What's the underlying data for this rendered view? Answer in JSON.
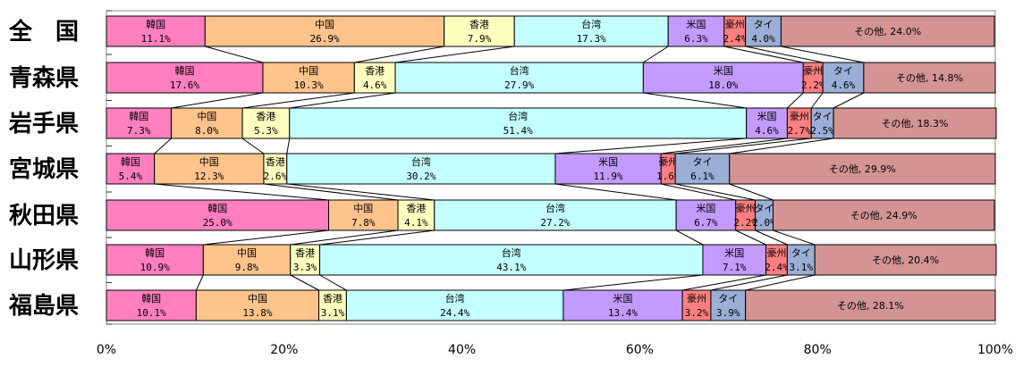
{
  "chart_data": {
    "type": "bar",
    "stacked": true,
    "orientation": "horizontal",
    "title": "",
    "xlabel": "",
    "ylabel": "",
    "xlim": [
      0,
      100
    ],
    "x_ticks": [
      "0%",
      "20%",
      "40%",
      "60%",
      "80%",
      "100%"
    ],
    "grid": false,
    "categories": [
      "全　国",
      "青森県",
      "岩手県",
      "宮城県",
      "秋田県",
      "山形県",
      "福島県"
    ],
    "series": [
      {
        "name": "韓国",
        "color": "#ff7fbf",
        "values": [
          11.1,
          17.6,
          7.3,
          5.4,
          25.0,
          10.9,
          10.1
        ],
        "labels": [
          "11.1%",
          "17.6%",
          "7.3%",
          "5.4%",
          "25.0%",
          "10.9%",
          "10.1%"
        ]
      },
      {
        "name": "中国",
        "color": "#ffc48c",
        "values": [
          26.9,
          10.3,
          8.0,
          12.3,
          7.8,
          9.8,
          13.8
        ],
        "labels": [
          "26.9%",
          "10.3%",
          "8.0%",
          "12.3%",
          "7.8%",
          "9.8%",
          "13.8%"
        ]
      },
      {
        "name": "香港",
        "color": "#ffffc0",
        "values": [
          7.9,
          4.6,
          5.3,
          2.6,
          4.1,
          3.3,
          3.1
        ],
        "labels": [
          "7.9%",
          "4.6%",
          "5.3%",
          "2.6%",
          "4.1%",
          "3.3%",
          "3.1%"
        ]
      },
      {
        "name": "台湾",
        "color": "#c4ffff",
        "values": [
          17.3,
          27.9,
          51.4,
          30.2,
          27.2,
          43.1,
          24.4
        ],
        "labels": [
          "17.3%",
          "27.9%",
          "51.4%",
          "30.2%",
          "27.2%",
          "43.1%",
          "24.4%"
        ]
      },
      {
        "name": "米国",
        "color": "#c39bff",
        "values": [
          6.3,
          18.0,
          4.6,
          11.9,
          6.7,
          7.1,
          13.4
        ],
        "labels": [
          "6.3%",
          "18.0%",
          "4.6%",
          "11.9%",
          "6.7%",
          "7.1%",
          "13.4%"
        ]
      },
      {
        "name": "豪州",
        "color": "#ff7f7f",
        "values": [
          2.4,
          2.2,
          2.7,
          1.6,
          2.2,
          2.4,
          3.2
        ],
        "labels": [
          "2.4%",
          "2.2%",
          "2.7%",
          "1.6%",
          "2.2%",
          "2.4%",
          "3.2%"
        ]
      },
      {
        "name": "タイ",
        "color": "#9aaed6",
        "values": [
          4.0,
          4.6,
          2.5,
          6.1,
          2.0,
          3.1,
          3.9
        ],
        "labels": [
          "4.0%",
          "4.6%",
          "2.5%",
          "6.1%",
          "2.0%",
          "3.1%",
          "3.9%"
        ]
      },
      {
        "name": "その他",
        "color": "#d49494",
        "values": [
          24.0,
          14.8,
          18.3,
          29.9,
          24.9,
          20.4,
          28.1
        ],
        "labels": [
          "24.0%",
          "14.8%",
          "18.3%",
          "29.9%",
          "24.9%",
          "20.4%",
          "28.1%"
        ]
      }
    ]
  }
}
